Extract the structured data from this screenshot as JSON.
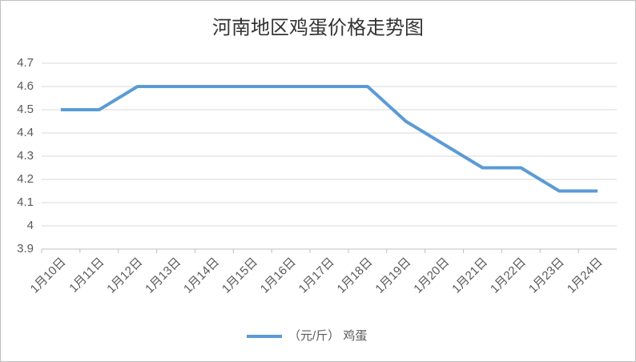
{
  "chart_data": {
    "type": "line",
    "title": "河南地区鸡蛋价格走势图",
    "categories": [
      "1月10日",
      "1月11日",
      "1月12日",
      "1月13日",
      "1月14日",
      "1月15日",
      "1月16日",
      "1月17日",
      "1月18日",
      "1月19日",
      "1月20日",
      "1月21日",
      "1月22日",
      "1月23日",
      "1月24日"
    ],
    "series": [
      {
        "name": "（元/斤） 鸡蛋",
        "color": "#5b9bd5",
        "values": [
          4.5,
          4.5,
          4.6,
          4.6,
          4.6,
          4.6,
          4.6,
          4.6,
          4.6,
          4.45,
          4.35,
          4.25,
          4.25,
          4.15,
          4.15
        ]
      }
    ],
    "ylim": [
      3.9,
      4.7
    ],
    "yticks": [
      3.9,
      4,
      4.1,
      4.2,
      4.3,
      4.4,
      4.5,
      4.6,
      4.7
    ],
    "grid": true,
    "legend": "bottom"
  }
}
